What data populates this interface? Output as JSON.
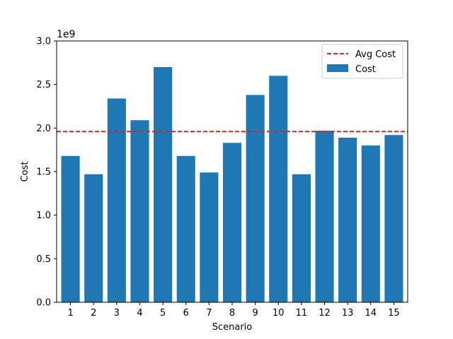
{
  "chart_data": {
    "type": "bar",
    "xlabel": "Scenario",
    "ylabel": "Cost",
    "offset_label": "1e9",
    "scale": 1000000000,
    "categories": [
      "1",
      "2",
      "3",
      "4",
      "5",
      "6",
      "7",
      "8",
      "9",
      "10",
      "11",
      "12",
      "13",
      "14",
      "15"
    ],
    "series": [
      {
        "name": "Cost",
        "color": "#1f77b4",
        "values": [
          1680000000,
          1470000000,
          2340000000,
          2090000000,
          2700000000,
          1680000000,
          1490000000,
          1830000000,
          2380000000,
          2600000000,
          1470000000,
          1970000000,
          1890000000,
          1800000000,
          1920000000
        ]
      }
    ],
    "reference_lines": [
      {
        "name": "Avg Cost",
        "value": 1960000000,
        "color": "#d62728",
        "style": "dashed"
      }
    ],
    "ylim": [
      0,
      3000000000
    ],
    "yticks": [
      0,
      500000000,
      1000000000,
      1500000000,
      2000000000,
      2500000000,
      3000000000
    ],
    "ytick_labels": [
      "0.0",
      "0.5",
      "1.0",
      "1.5",
      "2.0",
      "2.5",
      "3.0"
    ],
    "grid": false,
    "legend_position": "top-right"
  }
}
